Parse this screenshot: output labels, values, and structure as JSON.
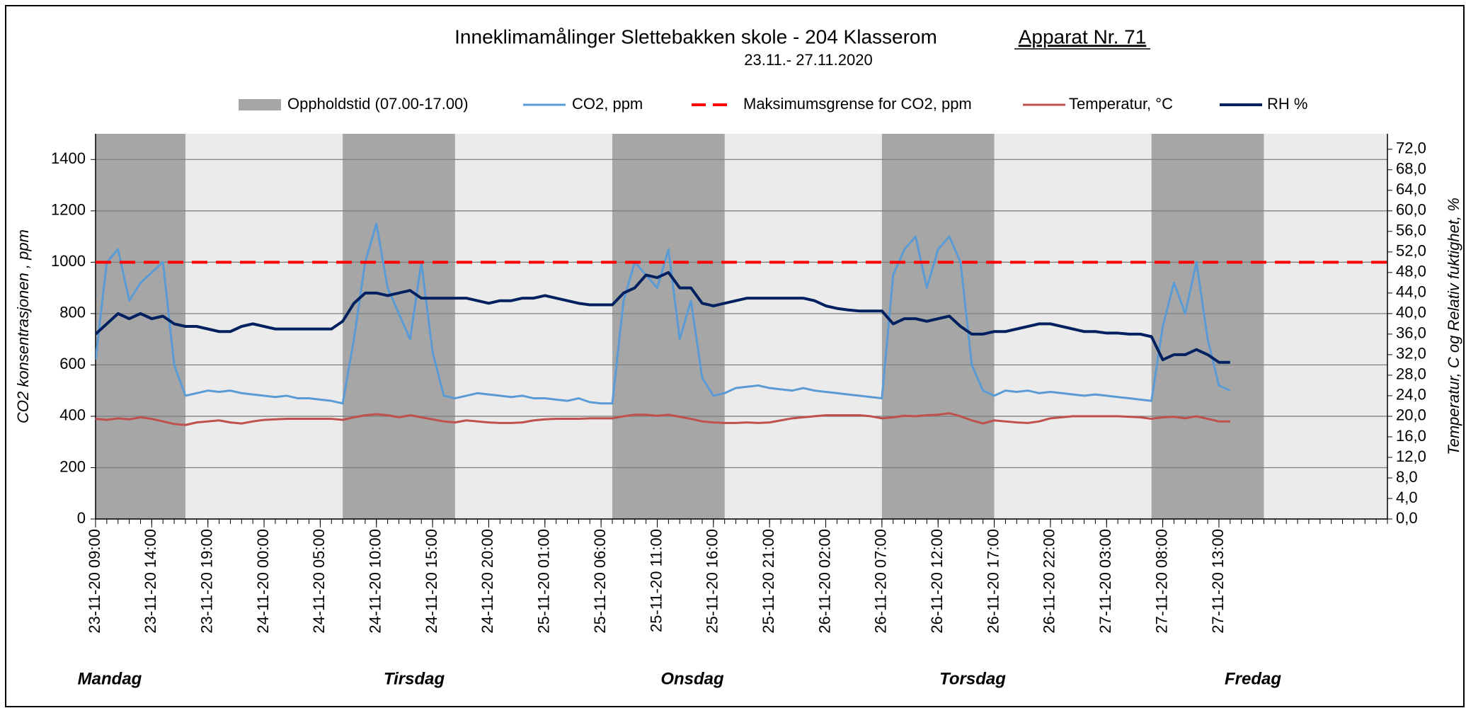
{
  "chart_data": {
    "type": "line",
    "title": "Inneklimamålinger   Slettebakken skole  -  204 Klasserom",
    "device": "Apparat Nr. 71",
    "subtitle": "23.11.- 27.11.2020",
    "ylabel": "CO2 konsentrasjonen , ppm",
    "y2label": "Temperatur, C og Relativ fuktighet, %",
    "ylim": [
      0,
      1500
    ],
    "yticks": [
      0,
      200,
      400,
      600,
      800,
      1000,
      1200,
      1400
    ],
    "y2lim": [
      0,
      75
    ],
    "y2ticks": [
      {
        "value": 0,
        "label": "0,0"
      },
      {
        "value": 4,
        "label": "4,0"
      },
      {
        "value": 8,
        "label": "8,0"
      },
      {
        "value": 12,
        "label": "12,0"
      },
      {
        "value": 16,
        "label": "16,0"
      },
      {
        "value": 20,
        "label": "20,0"
      },
      {
        "value": 24,
        "label": "24,0"
      },
      {
        "value": 28,
        "label": "28,0"
      },
      {
        "value": 32,
        "label": "32,0"
      },
      {
        "value": 36,
        "label": "36,0"
      },
      {
        "value": 40,
        "label": "40,0"
      },
      {
        "value": 44,
        "label": "44,0"
      },
      {
        "value": 48,
        "label": "48,0"
      },
      {
        "value": 52,
        "label": "52,0"
      },
      {
        "value": 56,
        "label": "56,0"
      },
      {
        "value": 60,
        "label": "60,0"
      },
      {
        "value": 64,
        "label": "64,0"
      },
      {
        "value": 68,
        "label": "68,0"
      },
      {
        "value": 72,
        "label": "72,0"
      }
    ],
    "xlim": [
      "23-11-20 09:00",
      "28-11-20 04:00"
    ],
    "xticks": [
      "23-11-20 09:00",
      "23-11-20 14:00",
      "23-11-20 19:00",
      "24-11-20 00:00",
      "24-11-20 05:00",
      "24-11-20 10:00",
      "24-11-20 15:00",
      "24-11-20 20:00",
      "25-11-20 01:00",
      "25-11-20 06:00",
      "25-11-20 11:00",
      "25-11-20 16:00",
      "25-11-20 21:00",
      "26-11-20 02:00",
      "26-11-20 07:00",
      "26-11-20 12:00",
      "26-11-20 17:00",
      "26-11-20 22:00",
      "27-11-20 03:00",
      "27-11-20 08:00",
      "27-11-20 13:00"
    ],
    "day_labels": [
      "Mandag",
      "Tirsdag",
      "Onsdag",
      "Torsdag",
      "Fredag"
    ],
    "grid": true,
    "occupancy": {
      "name": "Oppholdstid (07.00-17.00)",
      "color": "#a6a6a6",
      "bands": [
        [
          "23-11-20 09:00",
          "23-11-20 17:00"
        ],
        [
          "24-11-20 07:00",
          "24-11-20 17:00"
        ],
        [
          "25-11-20 07:00",
          "25-11-20 17:00"
        ],
        [
          "26-11-20 07:00",
          "26-11-20 17:00"
        ],
        [
          "27-11-20 07:00",
          "27-11-20 17:00"
        ]
      ]
    },
    "threshold": {
      "name": "Maksimumsgrense for CO2, ppm",
      "color": "#ff0000",
      "value": 1000
    },
    "x": [
      "23-11-20 09:00",
      "23-11-20 10:00",
      "23-11-20 11:00",
      "23-11-20 12:00",
      "23-11-20 13:00",
      "23-11-20 14:00",
      "23-11-20 15:00",
      "23-11-20 16:00",
      "23-11-20 17:00",
      "23-11-20 18:00",
      "23-11-20 19:00",
      "23-11-20 20:00",
      "23-11-20 21:00",
      "23-11-20 22:00",
      "23-11-20 23:00",
      "24-11-20 00:00",
      "24-11-20 01:00",
      "24-11-20 02:00",
      "24-11-20 03:00",
      "24-11-20 04:00",
      "24-11-20 05:00",
      "24-11-20 06:00",
      "24-11-20 07:00",
      "24-11-20 08:00",
      "24-11-20 09:00",
      "24-11-20 10:00",
      "24-11-20 11:00",
      "24-11-20 12:00",
      "24-11-20 13:00",
      "24-11-20 14:00",
      "24-11-20 15:00",
      "24-11-20 16:00",
      "24-11-20 17:00",
      "24-11-20 18:00",
      "24-11-20 19:00",
      "24-11-20 20:00",
      "24-11-20 21:00",
      "24-11-20 22:00",
      "24-11-20 23:00",
      "25-11-20 00:00",
      "25-11-20 01:00",
      "25-11-20 02:00",
      "25-11-20 03:00",
      "25-11-20 04:00",
      "25-11-20 05:00",
      "25-11-20 06:00",
      "25-11-20 07:00",
      "25-11-20 08:00",
      "25-11-20 09:00",
      "25-11-20 10:00",
      "25-11-20 11:00",
      "25-11-20 12:00",
      "25-11-20 13:00",
      "25-11-20 14:00",
      "25-11-20 15:00",
      "25-11-20 16:00",
      "25-11-20 17:00",
      "25-11-20 18:00",
      "25-11-20 19:00",
      "25-11-20 20:00",
      "25-11-20 21:00",
      "25-11-20 22:00",
      "25-11-20 23:00",
      "26-11-20 00:00",
      "26-11-20 01:00",
      "26-11-20 02:00",
      "26-11-20 03:00",
      "26-11-20 04:00",
      "26-11-20 05:00",
      "26-11-20 06:00",
      "26-11-20 07:00",
      "26-11-20 08:00",
      "26-11-20 09:00",
      "26-11-20 10:00",
      "26-11-20 11:00",
      "26-11-20 12:00",
      "26-11-20 13:00",
      "26-11-20 14:00",
      "26-11-20 15:00",
      "26-11-20 16:00",
      "26-11-20 17:00",
      "26-11-20 18:00",
      "26-11-20 19:00",
      "26-11-20 20:00",
      "26-11-20 21:00",
      "26-11-20 22:00",
      "26-11-20 23:00",
      "27-11-20 00:00",
      "27-11-20 01:00",
      "27-11-20 02:00",
      "27-11-20 03:00",
      "27-11-20 04:00",
      "27-11-20 05:00",
      "27-11-20 06:00",
      "27-11-20 07:00",
      "27-11-20 08:00",
      "27-11-20 09:00",
      "27-11-20 10:00",
      "27-11-20 11:00",
      "27-11-20 12:00",
      "27-11-20 13:00",
      "27-11-20 14:00"
    ],
    "series": [
      {
        "name": "CO2, ppm",
        "color": "#5b9bd5",
        "axis": "y",
        "values": [
          620,
          1000,
          1050,
          850,
          920,
          960,
          1000,
          600,
          480,
          490,
          500,
          495,
          500,
          490,
          485,
          480,
          475,
          480,
          470,
          470,
          465,
          460,
          450,
          700,
          1000,
          1150,
          900,
          800,
          700,
          1000,
          650,
          480,
          470,
          480,
          490,
          485,
          480,
          475,
          480,
          470,
          470,
          465,
          460,
          470,
          455,
          450,
          450,
          850,
          1000,
          950,
          900,
          1050,
          700,
          850,
          550,
          480,
          490,
          510,
          515,
          520,
          510,
          505,
          500,
          510,
          500,
          495,
          490,
          485,
          480,
          475,
          470,
          950,
          1050,
          1100,
          900,
          1050,
          1100,
          1000,
          600,
          500,
          480,
          500,
          495,
          500,
          490,
          495,
          490,
          485,
          480,
          485,
          480,
          475,
          470,
          465,
          460,
          750,
          920,
          800,
          1000,
          700,
          520,
          500
        ]
      },
      {
        "name": "Temperatur, °C",
        "color": "#c0504d",
        "axis": "y2",
        "values": [
          19.5,
          19.3,
          19.6,
          19.4,
          19.8,
          19.5,
          19.0,
          18.5,
          18.3,
          18.8,
          19.0,
          19.2,
          18.8,
          18.6,
          19.0,
          19.3,
          19.4,
          19.5,
          19.5,
          19.5,
          19.5,
          19.5,
          19.3,
          19.8,
          20.2,
          20.4,
          20.2,
          19.8,
          20.2,
          19.8,
          19.4,
          19.0,
          18.8,
          19.2,
          19.0,
          18.8,
          18.7,
          18.7,
          18.8,
          19.2,
          19.4,
          19.5,
          19.5,
          19.5,
          19.6,
          19.6,
          19.6,
          20.0,
          20.3,
          20.3,
          20.1,
          20.3,
          19.9,
          19.5,
          19.0,
          18.8,
          18.7,
          18.7,
          18.8,
          18.7,
          18.8,
          19.2,
          19.6,
          19.8,
          20.0,
          20.2,
          20.2,
          20.2,
          20.2,
          20.0,
          19.6,
          19.8,
          20.1,
          20.0,
          20.2,
          20.3,
          20.6,
          20.0,
          19.2,
          18.6,
          19.2,
          19.0,
          18.8,
          18.7,
          19.0,
          19.6,
          19.8,
          20.0,
          20.0,
          20.0,
          20.0,
          20.0,
          19.9,
          19.8,
          19.5,
          19.8,
          19.9,
          19.6,
          20.0,
          19.5,
          19.0,
          19.0
        ]
      },
      {
        "name": "RH %",
        "color": "#002060",
        "axis": "y2",
        "values": [
          36,
          38,
          40,
          39,
          40,
          39,
          39.5,
          38,
          37.5,
          37.5,
          37,
          36.5,
          36.5,
          37.5,
          38,
          37.5,
          37,
          37,
          37,
          37,
          37,
          37,
          38.5,
          42,
          44,
          44,
          43.5,
          44,
          44.5,
          43,
          43,
          43,
          43,
          43,
          42.5,
          42,
          42.5,
          42.5,
          43,
          43,
          43.5,
          43,
          42.5,
          42,
          41.7,
          41.7,
          41.7,
          44,
          45,
          47.5,
          47,
          48,
          45,
          45,
          42,
          41.5,
          42,
          42.5,
          43,
          43,
          43,
          43,
          43,
          43,
          42.5,
          41.5,
          41,
          40.7,
          40.5,
          40.5,
          40.5,
          38,
          39,
          39,
          38.5,
          39,
          39.5,
          37.5,
          36,
          36,
          36.5,
          36.5,
          37,
          37.5,
          38,
          38,
          37.5,
          37,
          36.5,
          36.5,
          36.2,
          36.2,
          36,
          36,
          35.5,
          31,
          32,
          32,
          33,
          32,
          30.5,
          30.5
        ]
      }
    ]
  }
}
